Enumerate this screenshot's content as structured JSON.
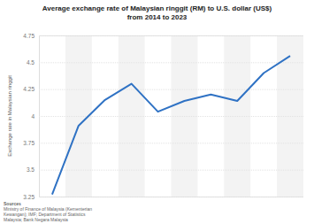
{
  "chart_data": {
    "type": "line",
    "title": "Average exchange rate of Malaysian ringgit (RM) to U.S. dollar (US$) from 2014 to 2023",
    "y_label": "Exchange rate in Malaysian ringgit",
    "annotations": [
      "Sources",
      "Ministry of Finance of Malaysia (Kementerian Kewangan); IMF; Department of Statistics Malaysia; Bank Negara Malaysia"
    ],
    "categories": [
      null,
      null,
      null,
      null,
      null,
      null,
      null,
      null,
      null,
      null
    ],
    "values": [
      3.27,
      3.91,
      4.15,
      4.3,
      4.04,
      4.14,
      4.2,
      4.14,
      4.4,
      4.56
    ],
    "color": "#2f72c4",
    "ylim": [
      3.25,
      4.75
    ],
    "yticks": [
      3.25,
      3.5,
      3.75,
      4,
      4.25,
      4.5,
      4.75
    ],
    "grid": true,
    "tick_labels": "y"
  }
}
